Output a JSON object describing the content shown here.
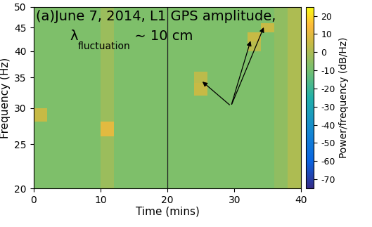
{
  "chart_data": {
    "type": "heatmap",
    "title": "(a)June 7, 2014, L1 GPS amplitude,",
    "subtitle": {
      "symbol": "λ",
      "subscript": "fluctuation",
      "suffix": " ∼ 10 cm"
    },
    "x_label": "Time (mins)",
    "y_label": "Frequency (Hz)",
    "log": "y",
    "xlim": [
      0,
      40
    ],
    "xticks": [
      0,
      10,
      20,
      30,
      40
    ],
    "ylim": [
      20,
      50
    ],
    "yticks": [
      20,
      25,
      30,
      35,
      40,
      45,
      50
    ],
    "time_edges": [
      0,
      2,
      4,
      6,
      8,
      10,
      12,
      14,
      16,
      18,
      20,
      22,
      24,
      26,
      28,
      30,
      32,
      34,
      36,
      38,
      40
    ],
    "frequency_edges": [
      20,
      22,
      24,
      26,
      28,
      30,
      32,
      34,
      36,
      38,
      40,
      42,
      44,
      46,
      48,
      50
    ],
    "cells": [
      [
        -8,
        -8,
        -8,
        -8,
        -8,
        -3,
        -8,
        -8,
        -8,
        -8,
        -8,
        -8,
        -8,
        -8,
        -8,
        -8,
        -8,
        -8,
        -5,
        0
      ],
      [
        -8,
        -8,
        -8,
        -8,
        -8,
        -3,
        -8,
        -8,
        -8,
        -8,
        -8,
        -8,
        -8,
        -8,
        -8,
        -8,
        -8,
        -8,
        -5,
        0
      ],
      [
        -8,
        -8,
        -8,
        -8,
        -8,
        -3,
        -8,
        -8,
        -8,
        -8,
        -8,
        -8,
        -8,
        -8,
        -8,
        -8,
        -8,
        -8,
        -5,
        0
      ],
      [
        -8,
        -8,
        -8,
        -8,
        -8,
        10,
        -8,
        -8,
        -8,
        -8,
        -8,
        -8,
        -8,
        -8,
        -8,
        -8,
        -8,
        -8,
        -5,
        0
      ],
      [
        5,
        -8,
        -8,
        -8,
        -8,
        -3,
        -8,
        -8,
        -8,
        -8,
        -8,
        -8,
        -8,
        -8,
        -8,
        -8,
        -8,
        -8,
        -5,
        0
      ],
      [
        -8,
        -8,
        -8,
        -8,
        -8,
        -3,
        -8,
        -8,
        -8,
        -8,
        -8,
        -8,
        -8,
        -8,
        -8,
        -8,
        -8,
        -8,
        -5,
        0
      ],
      [
        -8,
        -8,
        -8,
        -8,
        -8,
        -3,
        -8,
        -8,
        -8,
        -8,
        -8,
        -8,
        5,
        -8,
        -8,
        -8,
        -8,
        -8,
        -5,
        0
      ],
      [
        -8,
        -8,
        -8,
        -8,
        -8,
        -3,
        -8,
        -8,
        -8,
        -8,
        -8,
        -8,
        3,
        -8,
        -8,
        -8,
        -8,
        -8,
        -5,
        0
      ],
      [
        -8,
        -8,
        -8,
        -8,
        -8,
        -3,
        -8,
        -8,
        -8,
        -8,
        -8,
        -8,
        -8,
        -8,
        -8,
        -8,
        -8,
        -8,
        -5,
        0
      ],
      [
        -8,
        -8,
        -8,
        -8,
        -8,
        -3,
        -8,
        -8,
        -8,
        -8,
        -8,
        -8,
        -8,
        -8,
        -8,
        -8,
        -8,
        -8,
        -5,
        0
      ],
      [
        -8,
        -8,
        -8,
        -8,
        -8,
        -3,
        -8,
        -8,
        -8,
        -8,
        -8,
        -8,
        -8,
        -8,
        -8,
        -8,
        2,
        -8,
        -5,
        0
      ],
      [
        -8,
        -8,
        -8,
        -8,
        -8,
        -3,
        -8,
        -8,
        -8,
        -8,
        -8,
        -8,
        -8,
        -8,
        -8,
        -8,
        5,
        -8,
        -5,
        0
      ],
      [
        -8,
        -8,
        -8,
        -8,
        -8,
        -3,
        -8,
        -8,
        -8,
        -8,
        -8,
        -8,
        -8,
        -8,
        -8,
        -8,
        -8,
        5,
        -5,
        0
      ],
      [
        -8,
        -8,
        -8,
        -8,
        -8,
        -3,
        -8,
        -8,
        -8,
        -8,
        -8,
        -8,
        -8,
        -8,
        -8,
        -8,
        -8,
        -8,
        -5,
        0
      ],
      [
        -8,
        -8,
        -8,
        -8,
        -8,
        -3,
        -8,
        -8,
        -8,
        -8,
        -8,
        -8,
        -8,
        -8,
        -8,
        -8,
        -8,
        -8,
        -5,
        0
      ]
    ],
    "colorbar_label": "Power/frequency (dB/Hz)",
    "colorbar_range": [
      -75,
      25
    ],
    "colorbar_ticks": [
      -70,
      -60,
      -50,
      -40,
      -30,
      -20,
      -10,
      0,
      10,
      20
    ],
    "vertical_line_x": 20,
    "arrows": {
      "from": [
        29.5,
        30.3
      ],
      "to": [
        [
          25,
          34.5
        ],
        [
          32.5,
          42.5
        ],
        [
          34.5,
          45.5
        ]
      ]
    }
  }
}
